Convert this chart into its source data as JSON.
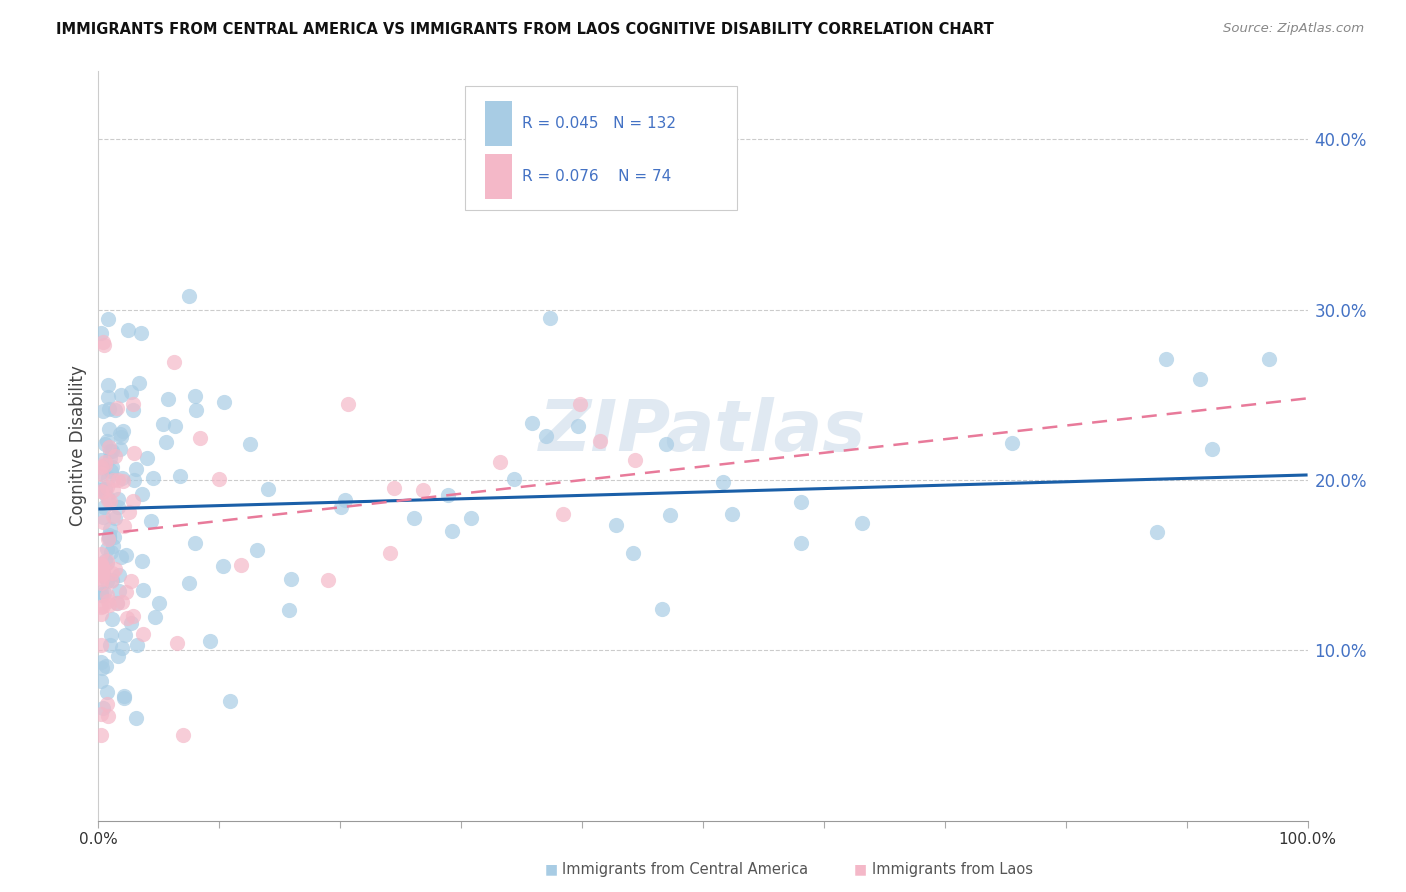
{
  "title": "IMMIGRANTS FROM CENTRAL AMERICA VS IMMIGRANTS FROM LAOS COGNITIVE DISABILITY CORRELATION CHART",
  "source": "Source: ZipAtlas.com",
  "ylabel": "Cognitive Disability",
  "legend_label1": "Immigrants from Central America",
  "legend_label2": "Immigrants from Laos",
  "R1": "0.045",
  "N1": "132",
  "R2": "0.076",
  "N2": "74",
  "color_blue": "#a8cce4",
  "color_pink": "#f4b8c8",
  "color_line_blue": "#1a5fa8",
  "color_line_pink": "#e87a9a",
  "watermark": "ZIPatlas",
  "xlim": [
    0.0,
    1.0
  ],
  "ylim": [
    0.0,
    0.44
  ],
  "yticks": [
    0.1,
    0.2,
    0.3,
    0.4
  ],
  "ytick_labels": [
    "10.0%",
    "20.0%",
    "30.0%",
    "40.0%"
  ],
  "right_tick_color": "#4472c4",
  "blue_intercept": 0.183,
  "blue_slope": 0.02,
  "pink_intercept": 0.168,
  "pink_slope": 0.08
}
